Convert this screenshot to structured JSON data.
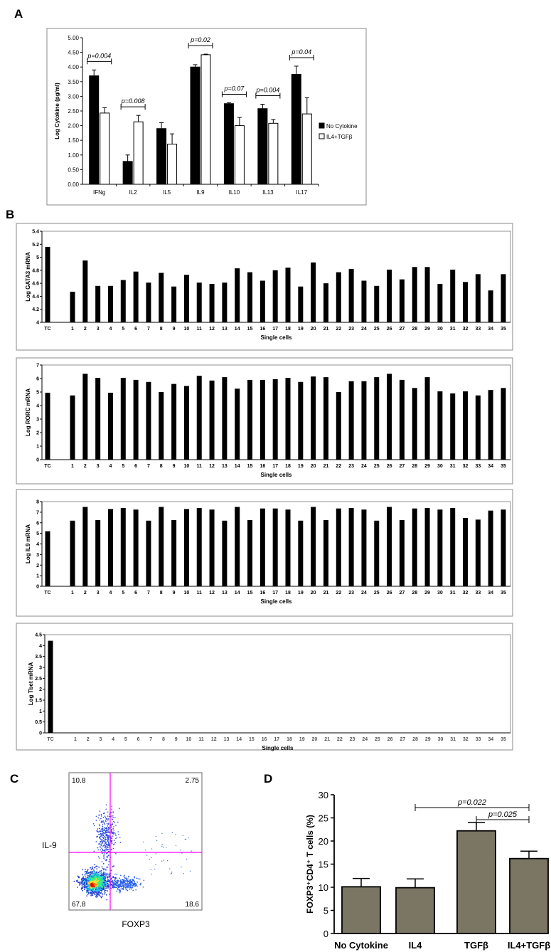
{
  "panels": {
    "A": "A",
    "B": "B",
    "C": "C",
    "D": "D"
  },
  "chart_data": [
    {
      "id": "A",
      "type": "bar",
      "ylabel": "Log Cytokine (pg/ml)",
      "ylim": [
        0,
        5
      ],
      "yticks": [
        "0.00",
        "0.50",
        "1.00",
        "1.50",
        "2.00",
        "2.50",
        "3.00",
        "3.50",
        "4.00",
        "4.50",
        "5.00"
      ],
      "categories": [
        "IFNg",
        "IL2",
        "IL5",
        "IL9",
        "IL10",
        "IL13",
        "IL17"
      ],
      "series": [
        {
          "name": "No Cytokine",
          "color": "#000000",
          "values": [
            3.7,
            0.78,
            1.9,
            4.0,
            2.75,
            2.58,
            3.75
          ],
          "errors": [
            0.2,
            0.22,
            0.2,
            0.08,
            0.03,
            0.15,
            0.28
          ]
        },
        {
          "name": "IL4+TGFβ",
          "color": "#ffffff",
          "values": [
            2.43,
            2.13,
            1.37,
            4.42,
            2.0,
            2.08,
            2.4
          ],
          "errors": [
            0.18,
            0.22,
            0.35,
            0.02,
            0.28,
            0.13,
            0.55
          ]
        }
      ],
      "pvalues": [
        {
          "label": "p=0.004",
          "i": 0
        },
        {
          "label": "p=0.008",
          "i": 1
        },
        {
          "label": "p=0.02",
          "i": 3
        },
        {
          "label": "p=0.07",
          "i": 4
        },
        {
          "label": "p=0.004",
          "i": 5
        },
        {
          "label": "p=0.04",
          "i": 6
        }
      ],
      "legend": "right"
    },
    {
      "id": "B1",
      "type": "bar",
      "ylabel": "Log GATA3 mRNA",
      "xlabel": "Single cells",
      "ylim": [
        4,
        5.4
      ],
      "yticks": [
        "4",
        "4.2",
        "4.4",
        "4.6",
        "4.8",
        "5",
        "5.2",
        "5.4"
      ],
      "categories": [
        "TC",
        "1",
        "2",
        "3",
        "4",
        "5",
        "6",
        "7",
        "8",
        "9",
        "10",
        "11",
        "12",
        "13",
        "14",
        "15",
        "16",
        "17",
        "18",
        "19",
        "20",
        "21",
        "22",
        "23",
        "24",
        "25",
        "26",
        "27",
        "28",
        "29",
        "30",
        "31",
        "32",
        "33",
        "34",
        "35"
      ],
      "values": [
        5.16,
        4.47,
        4.95,
        4.56,
        4.56,
        4.65,
        4.78,
        4.61,
        4.76,
        4.55,
        4.73,
        4.61,
        4.59,
        4.61,
        4.83,
        4.77,
        4.64,
        4.8,
        4.84,
        4.55,
        4.92,
        4.6,
        4.77,
        4.82,
        4.64,
        4.56,
        4.81,
        4.66,
        4.85,
        4.85,
        4.59,
        4.81,
        4.62,
        4.74,
        4.49,
        4.74
      ]
    },
    {
      "id": "B2",
      "type": "bar",
      "ylabel": "Log RORC mRNA",
      "xlabel": "Single cells",
      "ylim": [
        0,
        7
      ],
      "yticks": [
        "0",
        "1",
        "2",
        "3",
        "4",
        "5",
        "6",
        "7"
      ],
      "categories": [
        "TC",
        "1",
        "2",
        "3",
        "4",
        "5",
        "6",
        "7",
        "8",
        "9",
        "10",
        "11",
        "12",
        "13",
        "14",
        "15",
        "16",
        "17",
        "18",
        "19",
        "20",
        "21",
        "22",
        "23",
        "24",
        "25",
        "26",
        "27",
        "28",
        "29",
        "30",
        "31",
        "32",
        "33",
        "34",
        "35"
      ],
      "values": [
        4.95,
        4.75,
        6.35,
        6.05,
        4.95,
        6.05,
        5.9,
        5.75,
        5.0,
        5.6,
        5.45,
        6.2,
        5.85,
        6.1,
        5.25,
        5.9,
        5.9,
        5.95,
        6.05,
        5.75,
        6.15,
        6.1,
        5.0,
        5.8,
        5.8,
        6.1,
        6.35,
        5.9,
        5.3,
        6.1,
        5.05,
        4.9,
        5.05,
        4.75,
        5.15,
        5.3
      ]
    },
    {
      "id": "B3",
      "type": "bar",
      "ylabel": "Log IL9 mRNA",
      "xlabel": "Single cells",
      "ylim": [
        0,
        8
      ],
      "yticks": [
        "0",
        "1",
        "2",
        "3",
        "4",
        "5",
        "6",
        "7",
        "8"
      ],
      "categories": [
        "TC",
        "1",
        "2",
        "3",
        "4",
        "5",
        "6",
        "7",
        "8",
        "9",
        "10",
        "11",
        "12",
        "13",
        "14",
        "15",
        "16",
        "17",
        "18",
        "19",
        "20",
        "21",
        "22",
        "23",
        "24",
        "25",
        "26",
        "27",
        "28",
        "29",
        "30",
        "31",
        "32",
        "33",
        "34",
        "35"
      ],
      "values": [
        5.2,
        6.2,
        7.5,
        6.25,
        7.3,
        7.4,
        7.25,
        6.2,
        7.5,
        6.25,
        7.3,
        7.4,
        7.25,
        6.2,
        7.5,
        6.25,
        7.35,
        7.35,
        7.25,
        6.2,
        7.5,
        6.25,
        7.35,
        7.4,
        7.25,
        6.2,
        7.5,
        6.25,
        7.35,
        7.4,
        7.25,
        7.4,
        6.45,
        6.3,
        7.15,
        7.25
      ]
    },
    {
      "id": "B4",
      "type": "bar",
      "ylabel": "Log Tbet mRNA",
      "xlabel": "Single cells",
      "ylim": [
        0,
        4.5
      ],
      "yticks": [
        "0",
        "0.5",
        "1",
        "1.5",
        "2",
        "2.5",
        "3",
        "3.5",
        "4",
        "4.5"
      ],
      "categories": [
        "TC",
        "1",
        "2",
        "3",
        "4",
        "5",
        "6",
        "7",
        "8",
        "9",
        "10",
        "11",
        "12",
        "13",
        "14",
        "15",
        "16",
        "17",
        "18",
        "19",
        "20",
        "21",
        "22",
        "23",
        "24",
        "25",
        "26",
        "27",
        "28",
        "29",
        "30",
        "31",
        "32",
        "33",
        "34",
        "35"
      ],
      "values": [
        4.22,
        0,
        0,
        0,
        0,
        0,
        0,
        0,
        0,
        0,
        0,
        0,
        0,
        0,
        0,
        0,
        0,
        0,
        0,
        0,
        0,
        0,
        0,
        0,
        0,
        0,
        0,
        0,
        0,
        0,
        0,
        0,
        0,
        0,
        0,
        0
      ]
    },
    {
      "id": "C",
      "type": "scatter",
      "xlabel": "FOXP3",
      "ylabel": "IL-9",
      "quadrants": {
        "top_left": "10.8",
        "top_right": "2.75",
        "bottom_left": "67.8",
        "bottom_right": "18.6"
      },
      "gate_color": "#ff00ff"
    },
    {
      "id": "D",
      "type": "bar",
      "ylabel": "FOXP3⁺CD4⁺ T cells (%)",
      "ylim": [
        0,
        30
      ],
      "yticks": [
        "0",
        "5",
        "10",
        "15",
        "20",
        "25",
        "30"
      ],
      "categories": [
        "No Cytokine",
        "IL4",
        "TGFβ",
        "IL4+TGFβ"
      ],
      "values": [
        10.1,
        9.9,
        22.2,
        16.2
      ],
      "errors": [
        1.8,
        1.9,
        1.8,
        1.6
      ],
      "bar_color": "#7b7563",
      "pvalues": [
        {
          "label": "p=0.022",
          "from": 1,
          "to": 3
        },
        {
          "label": "p=0.025",
          "from": 2,
          "to": 3
        }
      ]
    }
  ]
}
